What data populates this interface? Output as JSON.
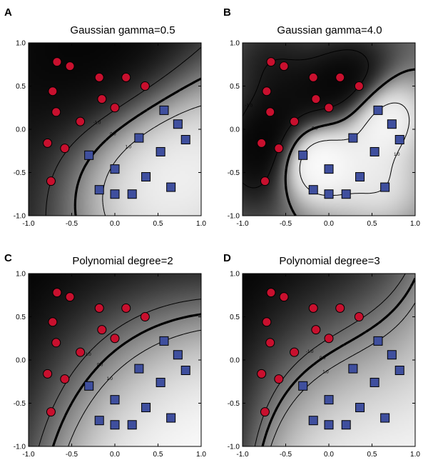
{
  "chart_data": [
    {
      "type": "scatter",
      "panel_letter": "A",
      "title": "Gaussian  gamma=0.5",
      "kernel": "gaussian",
      "gamma": 0.5,
      "xlim": [
        -1.0,
        1.0
      ],
      "ylim": [
        -1.0,
        1.0
      ],
      "xticks": [
        "-1.0",
        "-0.5",
        "0.0",
        "0.5",
        "1.0"
      ],
      "yticks": [
        "-1.0",
        "-0.5",
        "0.0",
        "0.5",
        "1.0"
      ],
      "contour_levels": [
        "-1.0",
        "0.0",
        "1.0"
      ]
    },
    {
      "type": "scatter",
      "panel_letter": "B",
      "title": "Gaussian gamma=4.0",
      "kernel": "gaussian",
      "gamma": 4.0,
      "xlim": [
        -1.0,
        1.0
      ],
      "ylim": [
        -1.0,
        1.0
      ],
      "xticks": [
        "-1.0",
        "-0.5",
        "0.0",
        "0.5",
        "1.0"
      ],
      "yticks": [
        "-1.0",
        "-0.5",
        "0.0",
        "0.5",
        "1.0"
      ],
      "contour_levels": [
        "-1.0",
        "0.0",
        "1.0"
      ]
    },
    {
      "type": "scatter",
      "panel_letter": "C",
      "title": "Polynomial degree=2",
      "kernel": "polynomial",
      "degree": 2,
      "xlim": [
        -1.0,
        1.0
      ],
      "ylim": [
        -1.0,
        1.0
      ],
      "xticks": [
        "-1.0",
        "-0.5",
        "0.0",
        "0.5",
        "1.0"
      ],
      "yticks": [
        "-1.0",
        "-0.5",
        "0.0",
        "0.5",
        "1.0"
      ],
      "contour_levels": [
        "-1.0",
        "0.0",
        "1.0"
      ]
    },
    {
      "type": "scatter",
      "panel_letter": "D",
      "title": "Polynomial degree=3",
      "kernel": "polynomial",
      "degree": 3,
      "xlim": [
        -1.0,
        1.0
      ],
      "ylim": [
        -1.0,
        1.0
      ],
      "xticks": [
        "-1.0",
        "-0.5",
        "0.0",
        "0.5",
        "1.0"
      ],
      "yticks": [
        "-1.0",
        "-0.5",
        "0.0",
        "0.5",
        "1.0"
      ],
      "contour_levels": [
        "-1.0",
        "0.0",
        "1.0"
      ]
    }
  ],
  "class_neg": {
    "marker": "circle",
    "color": "#c8102e",
    "points": [
      [
        -0.67,
        0.78
      ],
      [
        -0.52,
        0.73
      ],
      [
        -0.72,
        0.44
      ],
      [
        -0.18,
        0.6
      ],
      [
        0.13,
        0.6
      ],
      [
        0.35,
        0.5
      ],
      [
        -0.68,
        0.2
      ],
      [
        -0.4,
        0.09
      ],
      [
        -0.15,
        0.35
      ],
      [
        0.0,
        0.25
      ],
      [
        -0.78,
        -0.16
      ],
      [
        -0.58,
        -0.22
      ],
      [
        -0.74,
        -0.6
      ]
    ]
  },
  "class_pos": {
    "marker": "square",
    "color": "#3f4f9e",
    "points": [
      [
        -0.3,
        -0.3
      ],
      [
        0.0,
        -0.46
      ],
      [
        -0.18,
        -0.7
      ],
      [
        0.0,
        -0.75
      ],
      [
        0.2,
        -0.75
      ],
      [
        0.28,
        -0.1
      ],
      [
        0.36,
        -0.55
      ],
      [
        0.57,
        0.22
      ],
      [
        0.73,
        0.06
      ],
      [
        0.82,
        -0.12
      ],
      [
        0.53,
        -0.26
      ],
      [
        0.65,
        -0.67
      ]
    ]
  }
}
